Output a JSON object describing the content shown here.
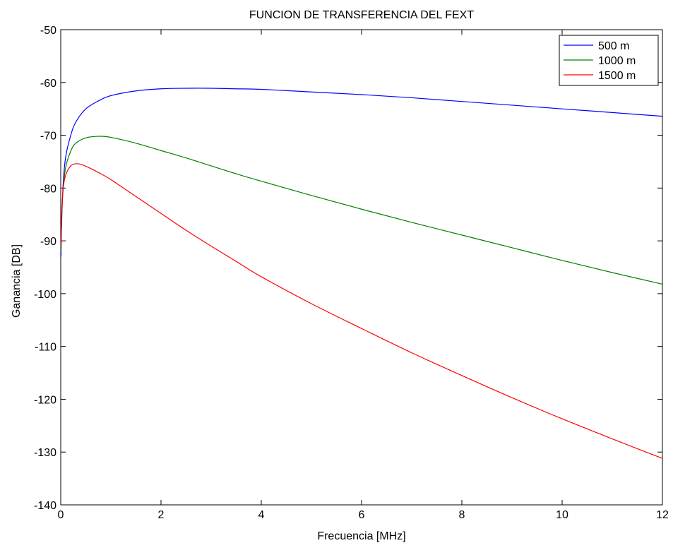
{
  "chart_data": {
    "type": "line",
    "title": "FUNCION DE TRANSFERENCIA DEL FEXT",
    "xlabel": "Frecuencia  [MHz]",
    "ylabel": "Ganancia  [DB]",
    "xlim": [
      0,
      12
    ],
    "ylim": [
      -140,
      -50
    ],
    "xticks": [
      0,
      2,
      4,
      6,
      8,
      10,
      12
    ],
    "yticks": [
      -140,
      -130,
      -120,
      -110,
      -100,
      -90,
      -80,
      -70,
      -60,
      -50
    ],
    "grid": false,
    "legend_position": "top-right",
    "series": [
      {
        "name": "500 m",
        "color": "#0000ff",
        "x": [
          0.005,
          0.02,
          0.05,
          0.1,
          0.2,
          0.3,
          0.5,
          0.75,
          1,
          1.5,
          2,
          2.5,
          3,
          3.5,
          4,
          5,
          6,
          7,
          8,
          9,
          10,
          11,
          12
        ],
        "y": [
          -93,
          -86,
          -79,
          -74,
          -70,
          -67.5,
          -65,
          -63.5,
          -62.5,
          -61.6,
          -61.2,
          -61.1,
          -61.1,
          -61.2,
          -61.3,
          -61.8,
          -62.3,
          -62.9,
          -63.6,
          -64.3,
          -65.0,
          -65.7,
          -66.4
        ]
      },
      {
        "name": "1000 m",
        "color": "#008000",
        "x": [
          0.005,
          0.02,
          0.05,
          0.1,
          0.2,
          0.3,
          0.5,
          0.75,
          1,
          1.5,
          2,
          2.5,
          3,
          3.5,
          4,
          5,
          6,
          7,
          8,
          9,
          10,
          11,
          12
        ],
        "y": [
          -92,
          -85,
          -80,
          -76,
          -73,
          -71.5,
          -70.5,
          -70.2,
          -70.4,
          -71.5,
          -72.9,
          -74.3,
          -75.8,
          -77.3,
          -78.7,
          -81.4,
          -84.0,
          -86.5,
          -88.9,
          -91.3,
          -93.7,
          -96.0,
          -98.2
        ]
      },
      {
        "name": "1500 m",
        "color": "#ff0000",
        "x": [
          0.005,
          0.02,
          0.05,
          0.1,
          0.2,
          0.3,
          0.4,
          0.6,
          0.8,
          1,
          1.5,
          2,
          2.5,
          3,
          3.5,
          4,
          5,
          6,
          7,
          8,
          9,
          10,
          11,
          12
        ],
        "y": [
          -91,
          -85,
          -80,
          -77.5,
          -75.8,
          -75.4,
          -75.5,
          -76.3,
          -77.3,
          -78.4,
          -81.6,
          -84.8,
          -88.0,
          -91.0,
          -93.9,
          -96.8,
          -101.9,
          -106.6,
          -111.2,
          -115.5,
          -119.7,
          -123.7,
          -127.5,
          -131.2
        ]
      }
    ]
  }
}
